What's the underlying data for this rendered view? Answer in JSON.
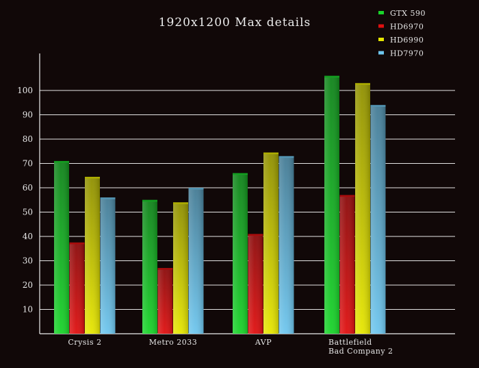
{
  "chart_data": {
    "type": "bar",
    "title": "1920x1200 Max details",
    "xlabel": "",
    "ylabel": "",
    "ylim": [
      0,
      120
    ],
    "yticks": [
      10,
      20,
      30,
      40,
      50,
      60,
      70,
      80,
      90,
      100
    ],
    "grid": true,
    "legend_position": "top-right",
    "categories": [
      [
        "Crysis 2"
      ],
      [
        "Metro 2033"
      ],
      [
        "AVP"
      ],
      [
        "Battlefield",
        "Bad Company 2"
      ]
    ],
    "series": [
      {
        "name": "GTX 590",
        "color": "#19d42a",
        "values": [
          71,
          55,
          66,
          106
        ]
      },
      {
        "name": "HD6970",
        "color": "#e01010",
        "values": [
          37.5,
          27,
          41,
          57
        ]
      },
      {
        "name": "HD6990",
        "color": "#e6e600",
        "values": [
          64.5,
          54,
          74.5,
          103
        ]
      },
      {
        "name": "HD7970",
        "color": "#6ec6ee",
        "values": [
          56,
          60,
          73,
          94
        ]
      }
    ]
  }
}
